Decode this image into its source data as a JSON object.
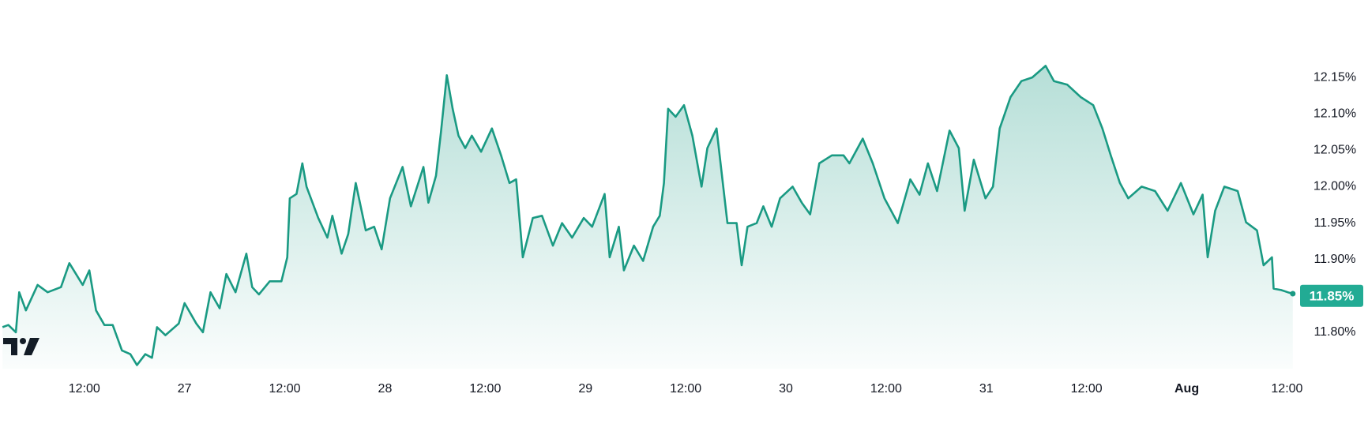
{
  "chart_data": {
    "type": "area",
    "x": [
      2.2,
      2.9,
      3.8,
      4.2,
      5.0,
      6.4,
      7.6,
      9.2,
      10.2,
      11.8,
      12.6,
      13.4,
      14.4,
      15.4,
      16.5,
      17.5,
      18.3,
      19.3,
      20.1,
      20.7,
      21.7,
      23.3,
      24.0,
      25.4,
      26.2,
      27.1,
      28.2,
      29.0,
      30.1,
      31.4,
      32.1,
      32.9,
      34.2,
      35.6,
      36.3,
      36.6,
      37.4,
      38.1,
      38.6,
      40.0,
      41.1,
      41.7,
      42.8,
      43.6,
      44.5,
      45.7,
      46.7,
      47.6,
      48.6,
      50.1,
      51.1,
      52.6,
      53.2,
      54.1,
      54.7,
      55.4,
      56.1,
      56.8,
      57.6,
      58.4,
      59.5,
      60.8,
      61.9,
      62.9,
      63.7,
      64.5,
      65.7,
      66.8,
      68.1,
      69.2,
      70.4,
      71.8,
      72.8,
      74.3,
      74.9,
      76.0,
      76.6,
      77.8,
      78.9,
      80.1,
      80.9,
      81.4,
      81.9,
      82.8,
      83.8,
      84.8,
      85.9,
      86.6,
      87.7,
      89.0,
      90.1,
      90.7,
      91.4,
      92.5,
      93.3,
      94.3,
      95.3,
      96.8,
      97.9,
      98.9,
      100.0,
      101.5,
      102.9,
      103.6,
      105.2,
      106.4,
      107.8,
      109.4,
      110.9,
      112.0,
      113.0,
      114.1,
      115.6,
      116.7,
      117.4,
      118.5,
      119.9,
      120.8,
      121.6,
      122.9,
      124.2,
      125.5,
      127.1,
      128.1,
      129.7,
      131.3,
      132.8,
      133.9,
      134.9,
      136.0,
      137.0,
      138.6,
      140.2,
      141.7,
      143.3,
      144.8,
      145.9,
      146.5,
      147.4,
      148.5,
      150.1,
      151.1,
      152.4,
      153.2,
      154.2,
      154.4,
      155.3,
      156.1,
      156.7
    ],
    "values": [
      11.807,
      11.81,
      11.8,
      11.855,
      11.83,
      11.865,
      11.855,
      11.862,
      11.895,
      11.865,
      11.885,
      11.83,
      11.81,
      11.81,
      11.775,
      11.77,
      11.755,
      11.77,
      11.765,
      11.807,
      11.796,
      11.812,
      11.84,
      11.812,
      11.8,
      11.855,
      11.833,
      11.88,
      11.855,
      11.908,
      11.862,
      11.852,
      11.87,
      11.87,
      11.903,
      11.984,
      11.99,
      12.032,
      12.0,
      11.957,
      11.93,
      11.96,
      11.908,
      11.935,
      12.005,
      11.94,
      11.945,
      11.914,
      11.984,
      12.027,
      11.973,
      12.027,
      11.978,
      12.015,
      12.075,
      12.153,
      12.107,
      12.07,
      12.053,
      12.07,
      12.048,
      12.08,
      12.043,
      12.005,
      12.01,
      11.903,
      11.957,
      11.96,
      11.919,
      11.95,
      11.93,
      11.957,
      11.945,
      11.99,
      11.903,
      11.945,
      11.885,
      11.919,
      11.898,
      11.945,
      11.96,
      12.005,
      12.107,
      12.096,
      12.112,
      12.07,
      12.0,
      12.053,
      12.08,
      11.95,
      11.95,
      11.892,
      11.945,
      11.95,
      11.973,
      11.945,
      11.984,
      12.0,
      11.978,
      11.962,
      12.032,
      12.043,
      12.043,
      12.032,
      12.066,
      12.032,
      11.984,
      11.95,
      12.01,
      11.989,
      12.032,
      11.994,
      12.077,
      12.053,
      11.967,
      12.037,
      11.984,
      12.0,
      12.08,
      12.123,
      12.145,
      12.15,
      12.166,
      12.145,
      12.14,
      12.123,
      12.112,
      12.08,
      12.043,
      12.005,
      11.984,
      12.0,
      11.994,
      11.967,
      12.005,
      11.962,
      11.989,
      11.903,
      11.967,
      12.0,
      11.994,
      11.951,
      11.94,
      11.892,
      11.903,
      11.86,
      11.858,
      11.855,
      11.853
    ],
    "color": "#1a9a83",
    "xlim": [
      1.9,
      157
    ],
    "xticks": [
      {
        "value": 12,
        "label": "12:00"
      },
      {
        "value": 24,
        "label": "27"
      },
      {
        "value": 36,
        "label": "12:00"
      },
      {
        "value": 48,
        "label": "28"
      },
      {
        "value": 60,
        "label": "12:00"
      },
      {
        "value": 72,
        "label": "29"
      },
      {
        "value": 84,
        "label": "12:00"
      },
      {
        "value": 96,
        "label": "30"
      },
      {
        "value": 108,
        "label": "12:00"
      },
      {
        "value": 120,
        "label": "31"
      },
      {
        "value": 132,
        "label": "12:00"
      },
      {
        "value": 144,
        "label": "Aug"
      },
      {
        "value": 156,
        "label": "12:00"
      }
    ],
    "ylim": [
      11.75,
      12.2
    ],
    "yticks": [
      {
        "value": 11.8,
        "label": "11.80%"
      },
      {
        "value": 11.85,
        "label": "11.85%"
      },
      {
        "value": 11.9,
        "label": "11.90%"
      },
      {
        "value": 11.95,
        "label": "11.95%"
      },
      {
        "value": 12.0,
        "label": "12.00%"
      },
      {
        "value": 12.05,
        "label": "12.05%"
      },
      {
        "value": 12.1,
        "label": "12.10%"
      },
      {
        "value": 12.15,
        "label": "12.15%"
      }
    ],
    "last_value": {
      "value": 11.85,
      "label": "11.85%"
    }
  }
}
